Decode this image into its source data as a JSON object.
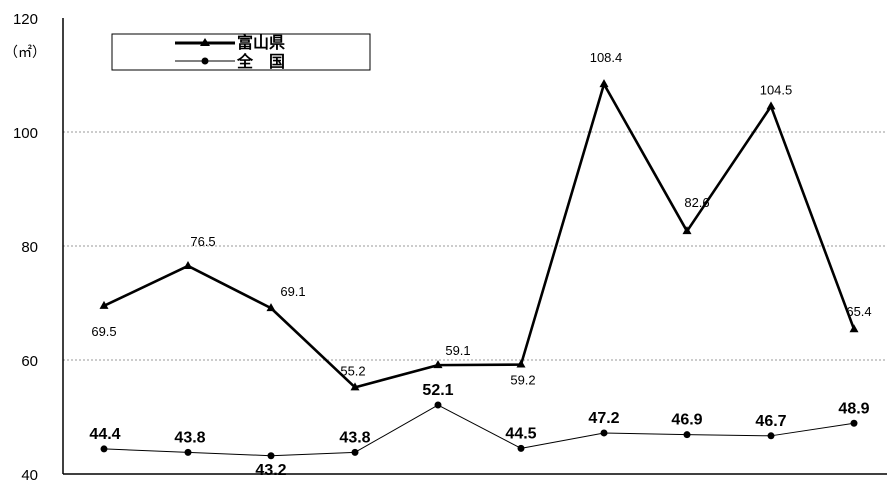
{
  "chart_data": {
    "type": "line",
    "unit_label": "（㎡）",
    "ylim": [
      40,
      120
    ],
    "yticks": [
      "40",
      "60",
      "80",
      "100",
      "120"
    ],
    "grid": "horizontal dashed",
    "legend_position": "top-left",
    "series": [
      {
        "name": "富山県",
        "color": "#000000",
        "marker": "triangle",
        "values": [
          69.5,
          76.5,
          69.1,
          55.2,
          59.1,
          59.2,
          108.4,
          82.6,
          104.5,
          65.4
        ],
        "labels": [
          "69.5",
          "76.5",
          "69.1",
          "55.2",
          "59.1",
          "59.2",
          "108.4",
          "82.6",
          "104.5",
          "65.4"
        ]
      },
      {
        "name": "全　国",
        "color": "#000000",
        "marker": "circle",
        "values": [
          44.4,
          43.8,
          43.2,
          43.8,
          52.1,
          44.5,
          47.2,
          46.9,
          46.7,
          48.9
        ],
        "labels": [
          "44.4",
          "43.8",
          "43.2",
          "43.8",
          "52.1",
          "44.5",
          "47.2",
          "46.9",
          "46.7",
          "48.9"
        ]
      }
    ]
  }
}
